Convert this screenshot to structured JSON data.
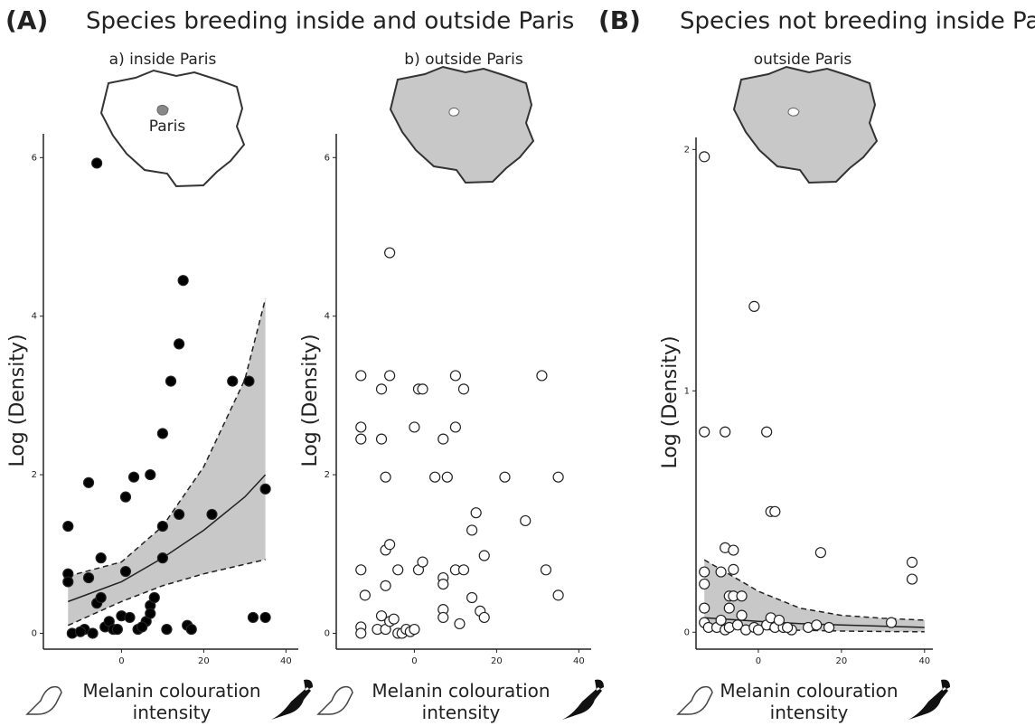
{
  "figure": {
    "group_a_label": "(A)",
    "group_a_title": "Species breeding inside and outside Paris",
    "group_b_label": "(B)",
    "group_b_title": "Species not breeding inside Paris"
  },
  "chart_data": [
    {
      "type": "scatter",
      "title": "a) inside Paris",
      "map_label": "Paris",
      "ylabel": "Log (Density)",
      "xlabel": "Melanin colouration intensity",
      "point_fill": "#000000",
      "xlim": [
        -19,
        43
      ],
      "ylim": [
        -0.2,
        6.3
      ],
      "xticks": [
        0,
        20,
        40
      ],
      "yticks": [
        0,
        2,
        4,
        6
      ],
      "x": [
        -13,
        -13,
        -13,
        -12,
        -6,
        -8,
        -8,
        -6,
        -5,
        -5,
        -9,
        -7,
        -4,
        -3,
        -2,
        0,
        1,
        1,
        2,
        3,
        4,
        6,
        7,
        7,
        7,
        8,
        10,
        10,
        10,
        11,
        12,
        14,
        14,
        15,
        16,
        17,
        22,
        27,
        31,
        32,
        35,
        35,
        -10,
        -1,
        5
      ],
      "values": [
        1.35,
        0.75,
        0.65,
        0,
        5.93,
        1.9,
        0.7,
        0.38,
        0.45,
        0.95,
        0.05,
        0,
        0.08,
        0.15,
        0.05,
        0.22,
        1.72,
        0.78,
        0.2,
        1.97,
        0.05,
        0.15,
        2,
        0.35,
        0.25,
        0.45,
        2.52,
        1.35,
        0.95,
        0.05,
        3.18,
        3.65,
        1.5,
        4.45,
        0.1,
        0.05,
        1.5,
        3.18,
        3.18,
        0.2,
        0.2,
        1.82,
        0.02,
        0.05,
        0.08
      ],
      "fit": {
        "x": [
          -13,
          0,
          10,
          20,
          30,
          35
        ],
        "y": [
          0.4,
          0.65,
          0.95,
          1.3,
          1.72,
          2.0
        ],
        "lower": [
          0.1,
          0.4,
          0.6,
          0.75,
          0.87,
          0.93
        ],
        "upper": [
          0.72,
          0.9,
          1.35,
          2.1,
          3.2,
          4.22
        ]
      }
    },
    {
      "type": "scatter",
      "title": "b) outside Paris",
      "ylabel": "Log (Density)",
      "xlabel": "Melanin colouration intensity",
      "point_fill": "#ffffff",
      "xlim": [
        -19,
        43
      ],
      "ylim": [
        -0.2,
        6.3
      ],
      "xticks": [
        0,
        20,
        40
      ],
      "yticks": [
        0,
        2,
        4,
        6
      ],
      "x": [
        -13,
        -13,
        -13,
        -13,
        -12,
        -13,
        -13,
        -6,
        -6,
        -8,
        -8,
        -7,
        -7,
        -6,
        -7,
        -4,
        -9,
        -8,
        -7,
        -6,
        -5,
        -4,
        -3,
        -2,
        -1,
        0,
        1,
        2,
        0,
        1,
        2,
        5,
        7,
        8,
        7,
        7,
        7,
        7,
        10,
        10,
        10,
        11,
        12,
        12,
        14,
        15,
        14,
        16,
        17,
        17,
        22,
        27,
        31,
        32,
        35,
        35
      ],
      "values": [
        3.25,
        2.6,
        2.45,
        0.8,
        0.48,
        0.08,
        0,
        4.8,
        3.25,
        3.08,
        2.45,
        1.97,
        1.05,
        1.12,
        0.6,
        0.8,
        0.05,
        0.22,
        0.05,
        0.15,
        0.18,
        0,
        0,
        0.05,
        0.02,
        0.05,
        3.08,
        3.08,
        2.6,
        0.8,
        0.9,
        1.97,
        2.45,
        1.97,
        0.7,
        0.62,
        0.3,
        0.2,
        3.25,
        2.6,
        0.8,
        0.12,
        3.08,
        0.8,
        1.3,
        1.52,
        0.45,
        0.28,
        0.98,
        0.2,
        1.97,
        1.42,
        3.25,
        0.8,
        1.97,
        0.48
      ]
    },
    {
      "type": "scatter",
      "title": "outside Paris",
      "ylabel": "Log (Density)",
      "xlabel": "Melanin colouration intensity",
      "point_fill": "#ffffff",
      "xlim": [
        -15,
        42
      ],
      "ylim": [
        -0.07,
        2.05
      ],
      "xticks": [
        0,
        20,
        40
      ],
      "yticks": [
        0,
        1,
        2
      ],
      "x": [
        -13,
        -13,
        -8,
        -1,
        2,
        3,
        4,
        -8,
        -6,
        15,
        37,
        37,
        -13,
        -9,
        -6,
        -13,
        -7,
        -6,
        -4,
        -13,
        -7,
        -13,
        -12,
        -10,
        -8,
        -7,
        -5,
        -3,
        -1,
        0,
        2,
        4,
        6,
        8,
        12,
        14,
        17,
        32,
        -4,
        3,
        -9,
        7,
        5
      ],
      "values": [
        1.97,
        0.83,
        0.83,
        1.35,
        0.83,
        0.5,
        0.5,
        0.35,
        0.34,
        0.33,
        0.29,
        0.22,
        0.25,
        0.25,
        0.26,
        0.2,
        0.15,
        0.15,
        0.15,
        0.1,
        0.1,
        0.04,
        0.02,
        0.02,
        0.01,
        0.02,
        0.03,
        0.01,
        0.02,
        0.01,
        0.03,
        0.02,
        0.02,
        0.01,
        0.02,
        0.03,
        0.02,
        0.04,
        0.07,
        0.06,
        0.05,
        0.02,
        0.05
      ],
      "fit": {
        "x": [
          -13,
          0,
          10,
          20,
          30,
          40
        ],
        "y": [
          0.06,
          0.045,
          0.036,
          0.03,
          0.025,
          0.02
        ],
        "lower": [
          0.02,
          0.012,
          0.008,
          0.005,
          0.003,
          0.002
        ],
        "upper": [
          0.3,
          0.17,
          0.1,
          0.07,
          0.058,
          0.05
        ]
      }
    }
  ]
}
